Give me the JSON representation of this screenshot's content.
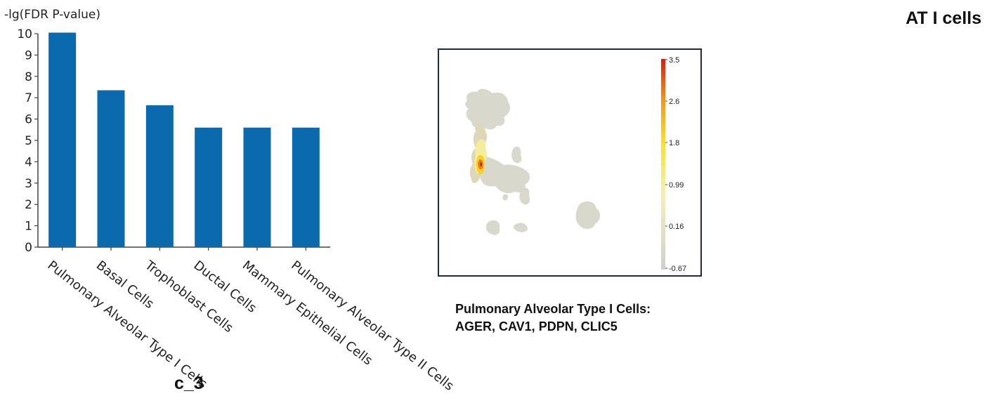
{
  "page_title": "AT I cells",
  "panel_tag": "c_3",
  "chart_data": {
    "type": "bar",
    "ylabel": "-lg(FDR P-value)",
    "xlabel": "",
    "categories": [
      "Pulmonary Alveolar Type I Cells",
      "Basal Cells",
      "Trophoblast Cells",
      "Ductal Cells",
      "Mammary Epithelial Cells",
      "Pulmonary Alveolar Type II Cells"
    ],
    "values": [
      10.05,
      7.35,
      6.65,
      5.6,
      5.6,
      5.6
    ],
    "ylim": [
      0,
      10
    ],
    "yticks": [
      "0",
      "1",
      "2",
      "3",
      "4",
      "5",
      "6",
      "7",
      "8",
      "9",
      "10"
    ],
    "grid": false,
    "bar_color": "#0a6aad"
  },
  "umap": {
    "colorbar_labels": [
      "3.5",
      "2.6",
      "1.8",
      "0.99",
      "0.16",
      "-0.67"
    ],
    "colors": {
      "base": "#d6d6cc",
      "low": "#f3f0a0",
      "mid": "#f6d12a",
      "high": "#ea7a1f",
      "peak": "#b4281b"
    }
  },
  "caption": {
    "line1": "Pulmonary Alveolar Type I Cells:",
    "line2": "AGER, CAV1, PDPN, CLIC5"
  }
}
